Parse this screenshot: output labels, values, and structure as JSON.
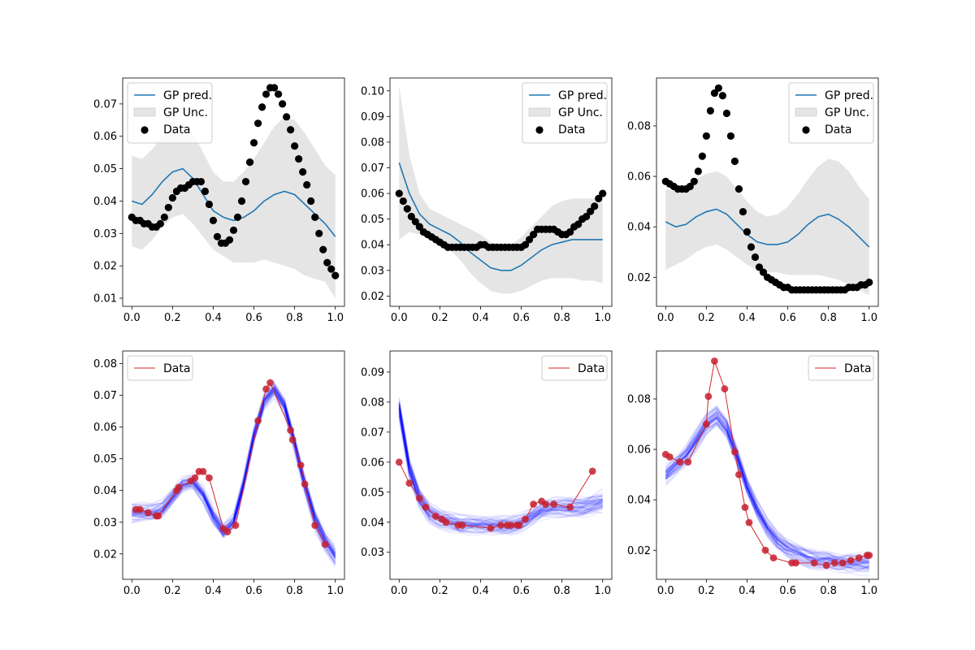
{
  "legend_labels": {
    "gp_pred": "GP pred.",
    "gp_unc": "GP Unc.",
    "data": "Data"
  },
  "colors": {
    "gp_pred": "#1f77b4",
    "gp_unc_fill": "#d3d3d3",
    "data_top": "#000000",
    "data_line_bottom": "#d62728",
    "data_points_bottom": "#c7202f",
    "samples": "#0000ff"
  },
  "chart_data": [
    {
      "type": "line",
      "panel": "top-left",
      "xlim": [
        0,
        1
      ],
      "ylim": [
        0.0075,
        0.078
      ],
      "xticks": [
        0.0,
        0.2,
        0.4,
        0.6,
        0.8,
        1.0
      ],
      "yticks": [
        0.01,
        0.02,
        0.03,
        0.04,
        0.05,
        0.06,
        0.07
      ],
      "legend": "upper left",
      "gp_mean": {
        "x": [
          0,
          0.05,
          0.1,
          0.15,
          0.2,
          0.25,
          0.3,
          0.35,
          0.4,
          0.45,
          0.5,
          0.55,
          0.6,
          0.65,
          0.7,
          0.75,
          0.8,
          0.85,
          0.9,
          0.95,
          1.0
        ],
        "y": [
          0.04,
          0.039,
          0.042,
          0.046,
          0.049,
          0.05,
          0.047,
          0.042,
          0.037,
          0.035,
          0.034,
          0.035,
          0.037,
          0.04,
          0.042,
          0.043,
          0.042,
          0.039,
          0.036,
          0.033,
          0.029
        ]
      },
      "gp_upper": [
        0.054,
        0.053,
        0.056,
        0.06,
        0.063,
        0.064,
        0.061,
        0.055,
        0.049,
        0.046,
        0.046,
        0.049,
        0.053,
        0.058,
        0.063,
        0.066,
        0.065,
        0.061,
        0.056,
        0.051,
        0.048
      ],
      "gp_lower": [
        0.026,
        0.025,
        0.028,
        0.032,
        0.035,
        0.036,
        0.033,
        0.029,
        0.025,
        0.023,
        0.021,
        0.021,
        0.021,
        0.022,
        0.021,
        0.02,
        0.019,
        0.017,
        0.016,
        0.015,
        0.01
      ],
      "data_x": [
        0,
        0.02,
        0.04,
        0.06,
        0.08,
        0.1,
        0.12,
        0.14,
        0.16,
        0.18,
        0.2,
        0.22,
        0.24,
        0.26,
        0.28,
        0.3,
        0.32,
        0.34,
        0.36,
        0.38,
        0.4,
        0.42,
        0.44,
        0.46,
        0.48,
        0.5,
        0.52,
        0.54,
        0.56,
        0.58,
        0.6,
        0.62,
        0.64,
        0.66,
        0.68,
        0.7,
        0.72,
        0.74,
        0.76,
        0.78,
        0.8,
        0.82,
        0.84,
        0.86,
        0.88,
        0.9,
        0.92,
        0.94,
        0.96,
        0.98,
        1.0
      ],
      "data_y": [
        0.035,
        0.034,
        0.034,
        0.033,
        0.033,
        0.032,
        0.032,
        0.033,
        0.035,
        0.038,
        0.041,
        0.043,
        0.044,
        0.044,
        0.045,
        0.046,
        0.046,
        0.046,
        0.043,
        0.039,
        0.034,
        0.029,
        0.027,
        0.027,
        0.028,
        0.031,
        0.035,
        0.04,
        0.046,
        0.052,
        0.058,
        0.064,
        0.069,
        0.073,
        0.075,
        0.075,
        0.073,
        0.07,
        0.066,
        0.062,
        0.057,
        0.053,
        0.049,
        0.045,
        0.04,
        0.035,
        0.03,
        0.025,
        0.021,
        0.019,
        0.017
      ]
    },
    {
      "type": "line",
      "panel": "top-middle",
      "xlim": [
        0,
        1
      ],
      "ylim": [
        0.016,
        0.105
      ],
      "xticks": [
        0.0,
        0.2,
        0.4,
        0.6,
        0.8,
        1.0
      ],
      "yticks": [
        0.02,
        0.03,
        0.04,
        0.05,
        0.06,
        0.07,
        0.08,
        0.09,
        0.1
      ],
      "legend": "upper right",
      "gp_mean": {
        "x": [
          0,
          0.05,
          0.1,
          0.15,
          0.2,
          0.25,
          0.3,
          0.35,
          0.4,
          0.45,
          0.5,
          0.55,
          0.6,
          0.65,
          0.7,
          0.75,
          0.8,
          0.85,
          0.9,
          0.95,
          1.0
        ],
        "y": [
          0.072,
          0.06,
          0.052,
          0.048,
          0.046,
          0.044,
          0.041,
          0.037,
          0.034,
          0.031,
          0.03,
          0.03,
          0.032,
          0.035,
          0.038,
          0.04,
          0.041,
          0.042,
          0.042,
          0.042,
          0.042
        ]
      },
      "gp_upper": [
        0.102,
        0.075,
        0.06,
        0.054,
        0.052,
        0.05,
        0.048,
        0.046,
        0.044,
        0.041,
        0.04,
        0.04,
        0.043,
        0.047,
        0.051,
        0.055,
        0.057,
        0.058,
        0.058,
        0.058,
        0.058
      ],
      "gp_lower": [
        0.042,
        0.045,
        0.044,
        0.042,
        0.04,
        0.038,
        0.034,
        0.029,
        0.025,
        0.022,
        0.021,
        0.021,
        0.022,
        0.024,
        0.026,
        0.027,
        0.027,
        0.027,
        0.026,
        0.026,
        0.025
      ],
      "data_x": [
        0,
        0.02,
        0.04,
        0.06,
        0.08,
        0.1,
        0.12,
        0.14,
        0.16,
        0.18,
        0.2,
        0.22,
        0.24,
        0.26,
        0.28,
        0.3,
        0.32,
        0.34,
        0.36,
        0.38,
        0.4,
        0.42,
        0.44,
        0.46,
        0.48,
        0.5,
        0.52,
        0.54,
        0.56,
        0.58,
        0.6,
        0.62,
        0.64,
        0.66,
        0.68,
        0.7,
        0.72,
        0.74,
        0.76,
        0.78,
        0.8,
        0.82,
        0.84,
        0.86,
        0.88,
        0.9,
        0.92,
        0.94,
        0.96,
        0.98,
        1.0
      ],
      "data_y": [
        0.06,
        0.057,
        0.054,
        0.051,
        0.049,
        0.047,
        0.045,
        0.044,
        0.043,
        0.042,
        0.041,
        0.04,
        0.039,
        0.039,
        0.039,
        0.039,
        0.039,
        0.039,
        0.039,
        0.039,
        0.04,
        0.04,
        0.039,
        0.039,
        0.039,
        0.039,
        0.039,
        0.039,
        0.039,
        0.039,
        0.039,
        0.04,
        0.042,
        0.044,
        0.046,
        0.046,
        0.046,
        0.046,
        0.046,
        0.045,
        0.044,
        0.044,
        0.045,
        0.047,
        0.048,
        0.05,
        0.051,
        0.053,
        0.055,
        0.058,
        0.06
      ]
    },
    {
      "type": "line",
      "panel": "top-right",
      "xlim": [
        0,
        1
      ],
      "ylim": [
        0.0085,
        0.099
      ],
      "xticks": [
        0.0,
        0.2,
        0.4,
        0.6,
        0.8,
        1.0
      ],
      "yticks": [
        0.02,
        0.04,
        0.06,
        0.08
      ],
      "legend": "upper right",
      "gp_mean": {
        "x": [
          0,
          0.05,
          0.1,
          0.15,
          0.2,
          0.25,
          0.3,
          0.35,
          0.4,
          0.45,
          0.5,
          0.55,
          0.6,
          0.65,
          0.7,
          0.75,
          0.8,
          0.85,
          0.9,
          0.95,
          1.0
        ],
        "y": [
          0.042,
          0.04,
          0.041,
          0.044,
          0.046,
          0.047,
          0.045,
          0.041,
          0.037,
          0.034,
          0.033,
          0.033,
          0.034,
          0.037,
          0.041,
          0.044,
          0.045,
          0.043,
          0.04,
          0.036,
          0.032
        ]
      },
      "gp_upper": [
        0.055,
        0.054,
        0.056,
        0.059,
        0.061,
        0.062,
        0.06,
        0.055,
        0.05,
        0.046,
        0.044,
        0.045,
        0.048,
        0.053,
        0.059,
        0.064,
        0.067,
        0.066,
        0.062,
        0.056,
        0.051
      ],
      "gp_lower": [
        0.023,
        0.025,
        0.027,
        0.03,
        0.032,
        0.033,
        0.031,
        0.028,
        0.025,
        0.023,
        0.022,
        0.022,
        0.021,
        0.021,
        0.021,
        0.021,
        0.02,
        0.019,
        0.017,
        0.015,
        0.013
      ],
      "data_x": [
        0,
        0.02,
        0.04,
        0.06,
        0.08,
        0.1,
        0.12,
        0.14,
        0.16,
        0.18,
        0.2,
        0.22,
        0.24,
        0.26,
        0.28,
        0.3,
        0.32,
        0.34,
        0.36,
        0.38,
        0.4,
        0.42,
        0.44,
        0.46,
        0.48,
        0.5,
        0.52,
        0.54,
        0.56,
        0.58,
        0.6,
        0.62,
        0.64,
        0.66,
        0.68,
        0.7,
        0.72,
        0.74,
        0.76,
        0.78,
        0.8,
        0.82,
        0.84,
        0.86,
        0.88,
        0.9,
        0.92,
        0.94,
        0.96,
        0.98,
        1.0
      ],
      "data_y": [
        0.058,
        0.057,
        0.056,
        0.055,
        0.055,
        0.055,
        0.056,
        0.058,
        0.062,
        0.068,
        0.076,
        0.086,
        0.093,
        0.095,
        0.092,
        0.085,
        0.076,
        0.066,
        0.055,
        0.046,
        0.038,
        0.032,
        0.028,
        0.024,
        0.022,
        0.02,
        0.019,
        0.018,
        0.017,
        0.016,
        0.016,
        0.015,
        0.015,
        0.015,
        0.015,
        0.015,
        0.015,
        0.015,
        0.015,
        0.015,
        0.015,
        0.015,
        0.015,
        0.015,
        0.015,
        0.016,
        0.016,
        0.016,
        0.017,
        0.017,
        0.018
      ]
    },
    {
      "type": "line",
      "panel": "bottom-left",
      "xlim": [
        0,
        1
      ],
      "ylim": [
        0.012,
        0.084
      ],
      "xticks": [
        0.0,
        0.2,
        0.4,
        0.6,
        0.8,
        1.0
      ],
      "yticks": [
        0.02,
        0.03,
        0.04,
        0.05,
        0.06,
        0.07,
        0.08
      ],
      "legend": "upper left",
      "sample_mean": {
        "x": [
          0,
          0.05,
          0.1,
          0.15,
          0.2,
          0.25,
          0.3,
          0.35,
          0.4,
          0.45,
          0.5,
          0.55,
          0.6,
          0.65,
          0.7,
          0.75,
          0.8,
          0.85,
          0.9,
          0.95,
          1.0
        ],
        "y": [
          0.033,
          0.033,
          0.033,
          0.034,
          0.038,
          0.042,
          0.043,
          0.039,
          0.032,
          0.027,
          0.03,
          0.042,
          0.057,
          0.068,
          0.072,
          0.067,
          0.055,
          0.042,
          0.031,
          0.024,
          0.019
        ]
      },
      "data_x": [
        0.02,
        0.04,
        0.08,
        0.12,
        0.13,
        0.22,
        0.23,
        0.29,
        0.31,
        0.33,
        0.35,
        0.38,
        0.45,
        0.47,
        0.51,
        0.62,
        0.66,
        0.68,
        0.78,
        0.79,
        0.83,
        0.85,
        0.9,
        0.95
      ],
      "data_y": [
        0.034,
        0.034,
        0.033,
        0.032,
        0.032,
        0.04,
        0.041,
        0.043,
        0.044,
        0.046,
        0.046,
        0.044,
        0.028,
        0.027,
        0.029,
        0.062,
        0.072,
        0.074,
        0.059,
        0.056,
        0.048,
        0.042,
        0.029,
        0.023
      ]
    },
    {
      "type": "line",
      "panel": "bottom-middle",
      "xlim": [
        0,
        1
      ],
      "ylim": [
        0.021,
        0.097
      ],
      "xticks": [
        0.0,
        0.2,
        0.4,
        0.6,
        0.8,
        1.0
      ],
      "yticks": [
        0.03,
        0.04,
        0.05,
        0.06,
        0.07,
        0.08,
        0.09
      ],
      "legend": "upper right",
      "sample_mean": {
        "x": [
          0,
          0.05,
          0.1,
          0.15,
          0.2,
          0.25,
          0.3,
          0.35,
          0.4,
          0.45,
          0.5,
          0.55,
          0.6,
          0.65,
          0.7,
          0.75,
          0.8,
          0.85,
          0.9,
          0.95,
          1.0
        ],
        "y": [
          0.078,
          0.058,
          0.048,
          0.043,
          0.041,
          0.04,
          0.039,
          0.039,
          0.039,
          0.039,
          0.039,
          0.039,
          0.04,
          0.042,
          0.044,
          0.045,
          0.045,
          0.045,
          0.045,
          0.046,
          0.047
        ]
      },
      "data_x": [
        0,
        0.05,
        0.1,
        0.13,
        0.18,
        0.21,
        0.23,
        0.29,
        0.31,
        0.45,
        0.5,
        0.53,
        0.55,
        0.58,
        0.59,
        0.62,
        0.66,
        0.7,
        0.72,
        0.76,
        0.84,
        0.95
      ],
      "data_y": [
        0.06,
        0.053,
        0.048,
        0.045,
        0.042,
        0.041,
        0.04,
        0.039,
        0.039,
        0.038,
        0.039,
        0.039,
        0.039,
        0.039,
        0.039,
        0.041,
        0.046,
        0.047,
        0.046,
        0.046,
        0.045,
        0.057
      ]
    },
    {
      "type": "line",
      "panel": "bottom-right",
      "xlim": [
        0,
        1
      ],
      "ylim": [
        0.0085,
        0.099
      ],
      "xticks": [
        0.0,
        0.2,
        0.4,
        0.6,
        0.8,
        1.0
      ],
      "yticks": [
        0.02,
        0.04,
        0.06,
        0.08
      ],
      "legend": "upper right",
      "sample_mean": {
        "x": [
          0,
          0.05,
          0.1,
          0.15,
          0.2,
          0.25,
          0.3,
          0.35,
          0.4,
          0.45,
          0.5,
          0.55,
          0.6,
          0.65,
          0.7,
          0.75,
          0.8,
          0.85,
          0.9,
          0.95,
          1.0
        ],
        "y": [
          0.05,
          0.054,
          0.058,
          0.064,
          0.07,
          0.073,
          0.068,
          0.057,
          0.045,
          0.036,
          0.029,
          0.024,
          0.021,
          0.019,
          0.017,
          0.016,
          0.016,
          0.015,
          0.015,
          0.015,
          0.015
        ]
      },
      "data_x": [
        0,
        0.02,
        0.07,
        0.11,
        0.2,
        0.21,
        0.24,
        0.29,
        0.34,
        0.36,
        0.39,
        0.41,
        0.49,
        0.53,
        0.62,
        0.64,
        0.73,
        0.79,
        0.83,
        0.87,
        0.91,
        0.95,
        0.99,
        1.0
      ],
      "data_y": [
        0.058,
        0.057,
        0.055,
        0.055,
        0.07,
        0.081,
        0.095,
        0.084,
        0.059,
        0.05,
        0.037,
        0.031,
        0.02,
        0.017,
        0.015,
        0.015,
        0.015,
        0.014,
        0.015,
        0.015,
        0.016,
        0.017,
        0.018,
        0.018
      ]
    }
  ]
}
